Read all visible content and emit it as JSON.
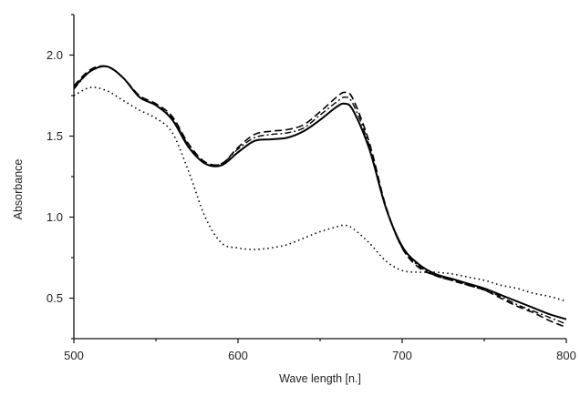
{
  "chart_data": {
    "type": "line",
    "xlabel": "Wave length [n.]",
    "ylabel": "Absorbance",
    "xlim": [
      500,
      800
    ],
    "ylim": [
      0.25,
      2.25
    ],
    "xticks": [
      500,
      600,
      700,
      800
    ],
    "xtick_labels": [
      "500",
      "600",
      "700",
      "800"
    ],
    "yticks": [
      0.5,
      1.0,
      1.5,
      2.0
    ],
    "ytick_labels": [
      "0.5",
      "1.0",
      "1.5",
      "2.0"
    ],
    "grid": false,
    "x": [
      500,
      510,
      520,
      530,
      540,
      550,
      560,
      570,
      580,
      590,
      600,
      610,
      620,
      630,
      640,
      650,
      660,
      665,
      670,
      680,
      690,
      700,
      710,
      720,
      730,
      740,
      750,
      760,
      770,
      780,
      790,
      800
    ],
    "series": [
      {
        "style": "solid",
        "values": [
          1.8,
          1.9,
          1.93,
          1.86,
          1.74,
          1.69,
          1.6,
          1.43,
          1.33,
          1.32,
          1.4,
          1.47,
          1.48,
          1.49,
          1.53,
          1.6,
          1.68,
          1.7,
          1.66,
          1.42,
          1.06,
          0.82,
          0.71,
          0.65,
          0.62,
          0.59,
          0.56,
          0.52,
          0.48,
          0.44,
          0.4,
          0.37
        ]
      },
      {
        "style": "dashed",
        "values": [
          1.81,
          1.91,
          1.93,
          1.86,
          1.75,
          1.7,
          1.62,
          1.45,
          1.34,
          1.33,
          1.43,
          1.51,
          1.53,
          1.54,
          1.57,
          1.65,
          1.74,
          1.77,
          1.73,
          1.46,
          1.07,
          0.81,
          0.69,
          0.64,
          0.61,
          0.58,
          0.55,
          0.5,
          0.45,
          0.41,
          0.36,
          0.32
        ]
      },
      {
        "style": "dash-dot",
        "values": [
          1.79,
          1.9,
          1.93,
          1.86,
          1.74,
          1.69,
          1.61,
          1.44,
          1.33,
          1.33,
          1.42,
          1.49,
          1.51,
          1.52,
          1.55,
          1.63,
          1.71,
          1.74,
          1.7,
          1.44,
          1.06,
          0.81,
          0.7,
          0.64,
          0.61,
          0.58,
          0.55,
          0.51,
          0.46,
          0.42,
          0.38,
          0.34
        ]
      },
      {
        "style": "dotted",
        "values": [
          1.75,
          1.8,
          1.78,
          1.72,
          1.66,
          1.61,
          1.52,
          1.28,
          1.0,
          0.84,
          0.81,
          0.8,
          0.81,
          0.83,
          0.87,
          0.91,
          0.94,
          0.95,
          0.93,
          0.84,
          0.73,
          0.67,
          0.66,
          0.66,
          0.65,
          0.63,
          0.61,
          0.58,
          0.56,
          0.53,
          0.51,
          0.48
        ]
      }
    ]
  }
}
